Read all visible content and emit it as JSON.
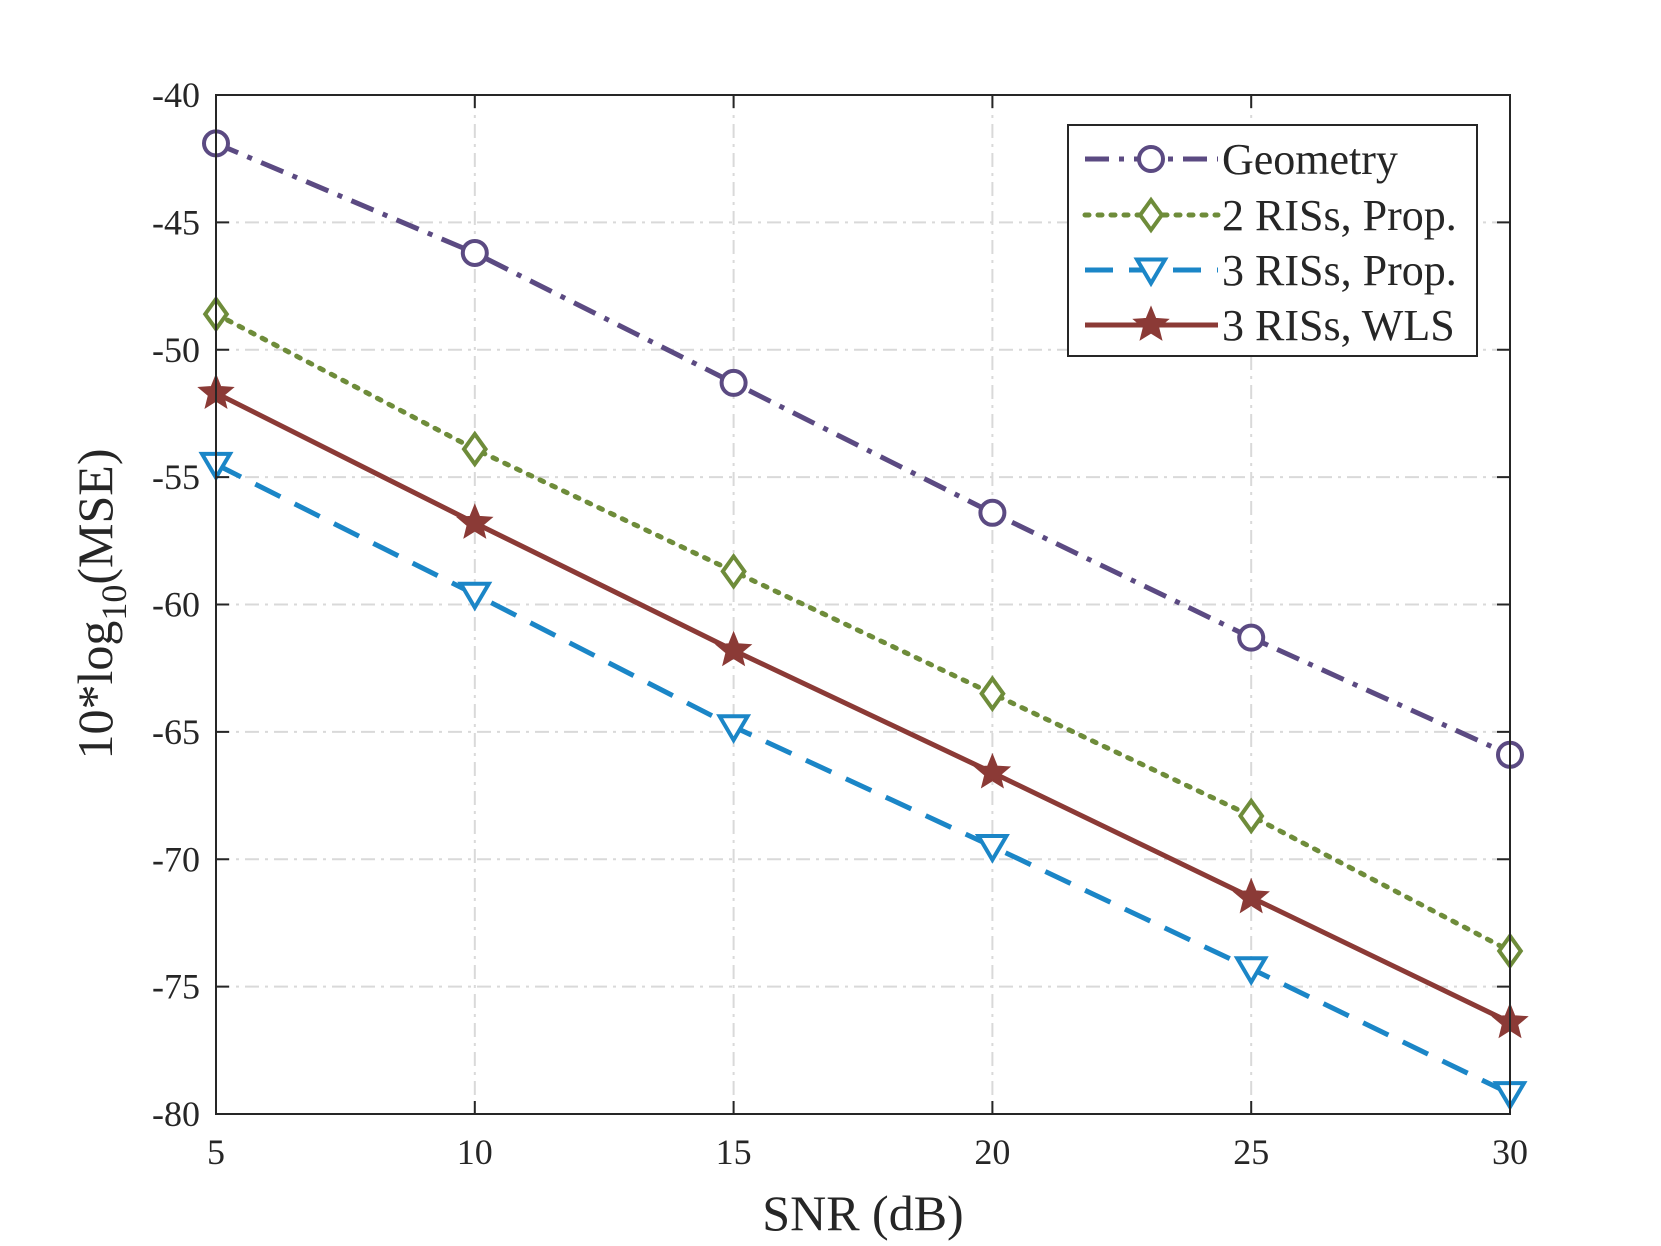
{
  "chart_data": {
    "type": "line",
    "title": "",
    "xlabel": "SNR (dB)",
    "ylabel": {
      "prefix": "10*log",
      "subscript": "10",
      "suffix": "(MSE)"
    },
    "x": [
      5,
      10,
      15,
      20,
      25,
      30
    ],
    "xlim": [
      5,
      30
    ],
    "ylim": [
      -80,
      -40
    ],
    "xticks": [
      5,
      10,
      15,
      20,
      25,
      30
    ],
    "xtick_labels": [
      "5",
      "10",
      "15",
      "20",
      "25",
      "30"
    ],
    "yticks": [
      -40,
      -45,
      -50,
      -55,
      -60,
      -65,
      -70,
      -75,
      -80
    ],
    "ytick_labels": [
      "-40",
      "-45",
      "-50",
      "-55",
      "-60",
      "-65",
      "-70",
      "-75",
      "-80"
    ],
    "grid": true,
    "legend_position": "top-right",
    "series": [
      {
        "name": "Geometry",
        "values": [
          -41.9,
          -46.2,
          -51.3,
          -56.4,
          -61.3,
          -65.9
        ],
        "color": "#5b4a82",
        "line_style": "dash-dot",
        "marker": "circle"
      },
      {
        "name": "2 RISs, Prop.",
        "values": [
          -48.6,
          -53.9,
          -58.7,
          -63.5,
          -68.3,
          -73.6
        ],
        "color": "#6e8c3a",
        "line_style": "dotted",
        "marker": "diamond"
      },
      {
        "name": "3 RISs, Prop.",
        "values": [
          -54.5,
          -59.6,
          -64.8,
          -69.5,
          -74.3,
          -79.2
        ],
        "color": "#1b86c7",
        "line_style": "dashed",
        "marker": "triangle-down"
      },
      {
        "name": "3 RISs, WLS",
        "values": [
          -51.7,
          -56.8,
          -61.8,
          -66.6,
          -71.5,
          -76.4
        ],
        "color": "#8b3a36",
        "line_style": "solid",
        "marker": "star"
      }
    ]
  }
}
